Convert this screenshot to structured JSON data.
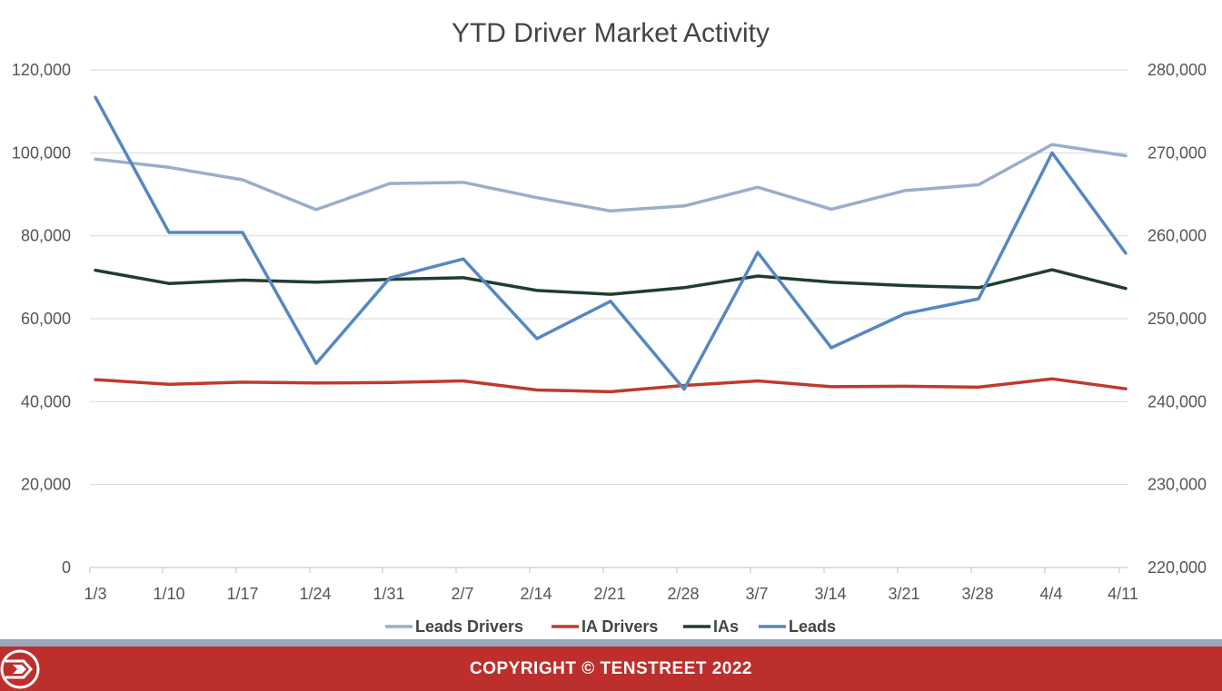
{
  "chart_data": {
    "type": "line",
    "title": "YTD Driver Market Activity",
    "categories": [
      "1/3",
      "1/10",
      "1/17",
      "1/24",
      "1/31",
      "2/7",
      "2/14",
      "2/21",
      "2/28",
      "3/7",
      "3/14",
      "3/21",
      "3/28",
      "4/4",
      "4/11"
    ],
    "y_left": {
      "range": [
        0,
        120000
      ],
      "ticks": [
        "0",
        "20,000",
        "40,000",
        "60,000",
        "80,000",
        "100,000",
        "120,000"
      ]
    },
    "y_right": {
      "range": [
        220000,
        280000
      ],
      "ticks": [
        "220,000",
        "230,000",
        "240,000",
        "250,000",
        "260,000",
        "270,000",
        "280,000"
      ]
    },
    "series": [
      {
        "name": "Leads Drivers",
        "axis": "left",
        "color": "#9aaec9",
        "values": [
          98500,
          96500,
          93500,
          86300,
          92600,
          92900,
          89200,
          86000,
          87200,
          91700,
          86400,
          90900,
          92300,
          102000,
          99300
        ]
      },
      {
        "name": "IA Drivers",
        "axis": "left",
        "color": "#be3a2e",
        "values": [
          45300,
          44200,
          44700,
          44500,
          44600,
          45000,
          42800,
          42400,
          43900,
          45000,
          43600,
          43700,
          43500,
          45500,
          43100
        ]
      },
      {
        "name": "IAs",
        "axis": "left",
        "color": "#1f3d33",
        "values": [
          71700,
          68500,
          69300,
          68800,
          69500,
          69900,
          66800,
          65900,
          67500,
          70300,
          68800,
          68000,
          67500,
          71800,
          67300
        ]
      },
      {
        "name": "Leads",
        "axis": "right",
        "color": "#5588c0",
        "values": [
          276700,
          260400,
          260400,
          244600,
          254900,
          257200,
          247600,
          252100,
          241500,
          258000,
          246500,
          250600,
          252400,
          270000,
          257900
        ]
      }
    ],
    "grid": true,
    "legend": "bottom"
  },
  "footer": {
    "copyright": "COPYRIGHT © TENSTREET 2022"
  },
  "colors": {
    "footer_red": "#bd2f2c",
    "footer_stripe": "#9aa8bc"
  }
}
